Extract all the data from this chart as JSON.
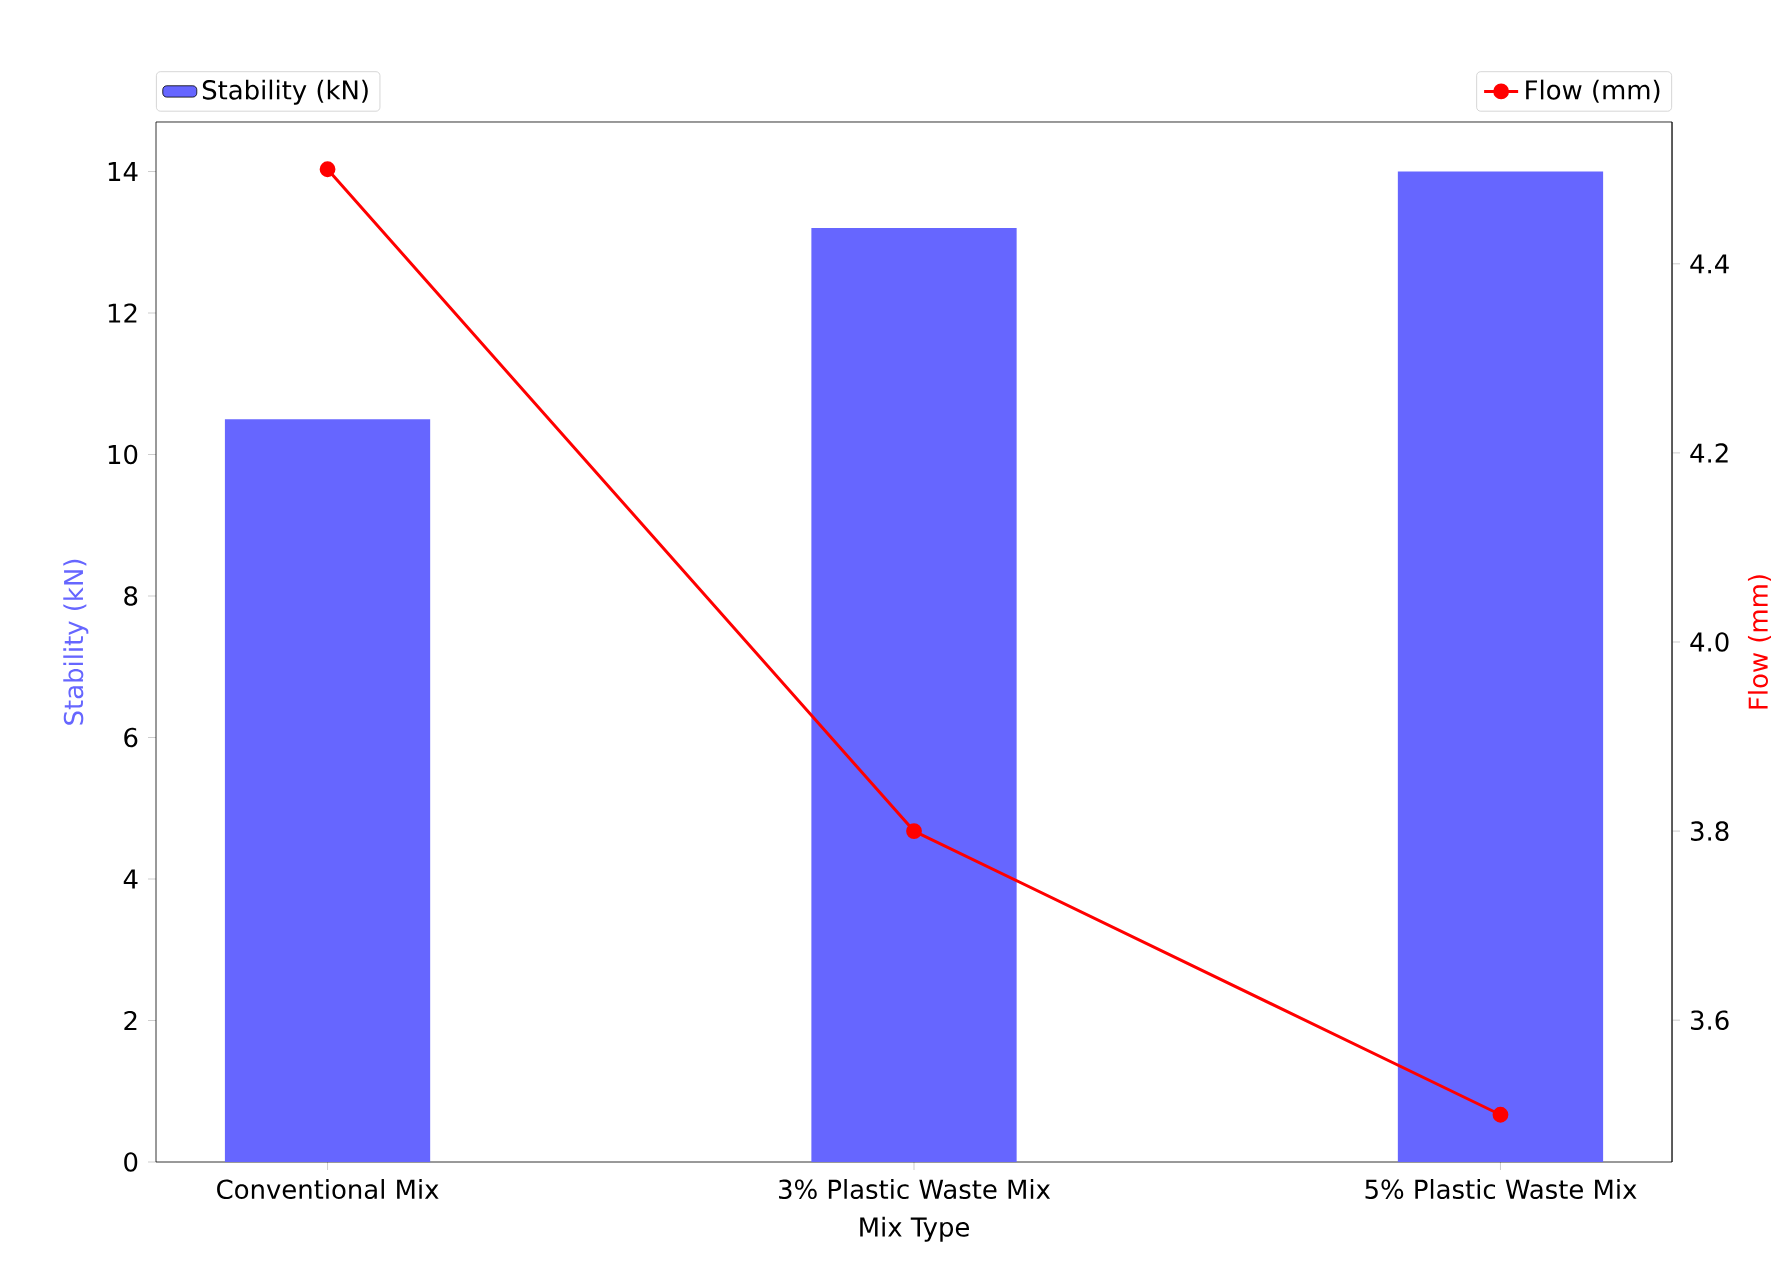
{
  "chart_data": {
    "type": "bar",
    "xlabel": "Mix Type",
    "ylabel": "Stability (kN)",
    "y2label": "Flow (mm)",
    "categories": [
      "Conventional Mix",
      "3% Plastic Waste Mix",
      "5% Plastic Waste Mix"
    ],
    "series": [
      {
        "name": "Stability (kN)",
        "color": "#6666ff",
        "values": [
          10.5,
          13.2,
          14.0
        ]
      },
      {
        "name": "Flow (mm)",
        "type": "line",
        "axis": "y2",
        "color": "#ff0000",
        "values": [
          4.5,
          3.8,
          3.5
        ]
      }
    ],
    "marker": "circle",
    "line_style": "solid",
    "legend": "top",
    "ylim": [
      0,
      14.7
    ],
    "yticks": [
      0,
      2,
      4,
      6,
      8,
      10,
      12,
      14
    ],
    "y2lim": [
      3.45,
      4.55
    ],
    "y2ticks": [
      3.6,
      3.8,
      {
        "value": 4.0,
        "label": "4.0"
      },
      4.2,
      4.4
    ]
  }
}
